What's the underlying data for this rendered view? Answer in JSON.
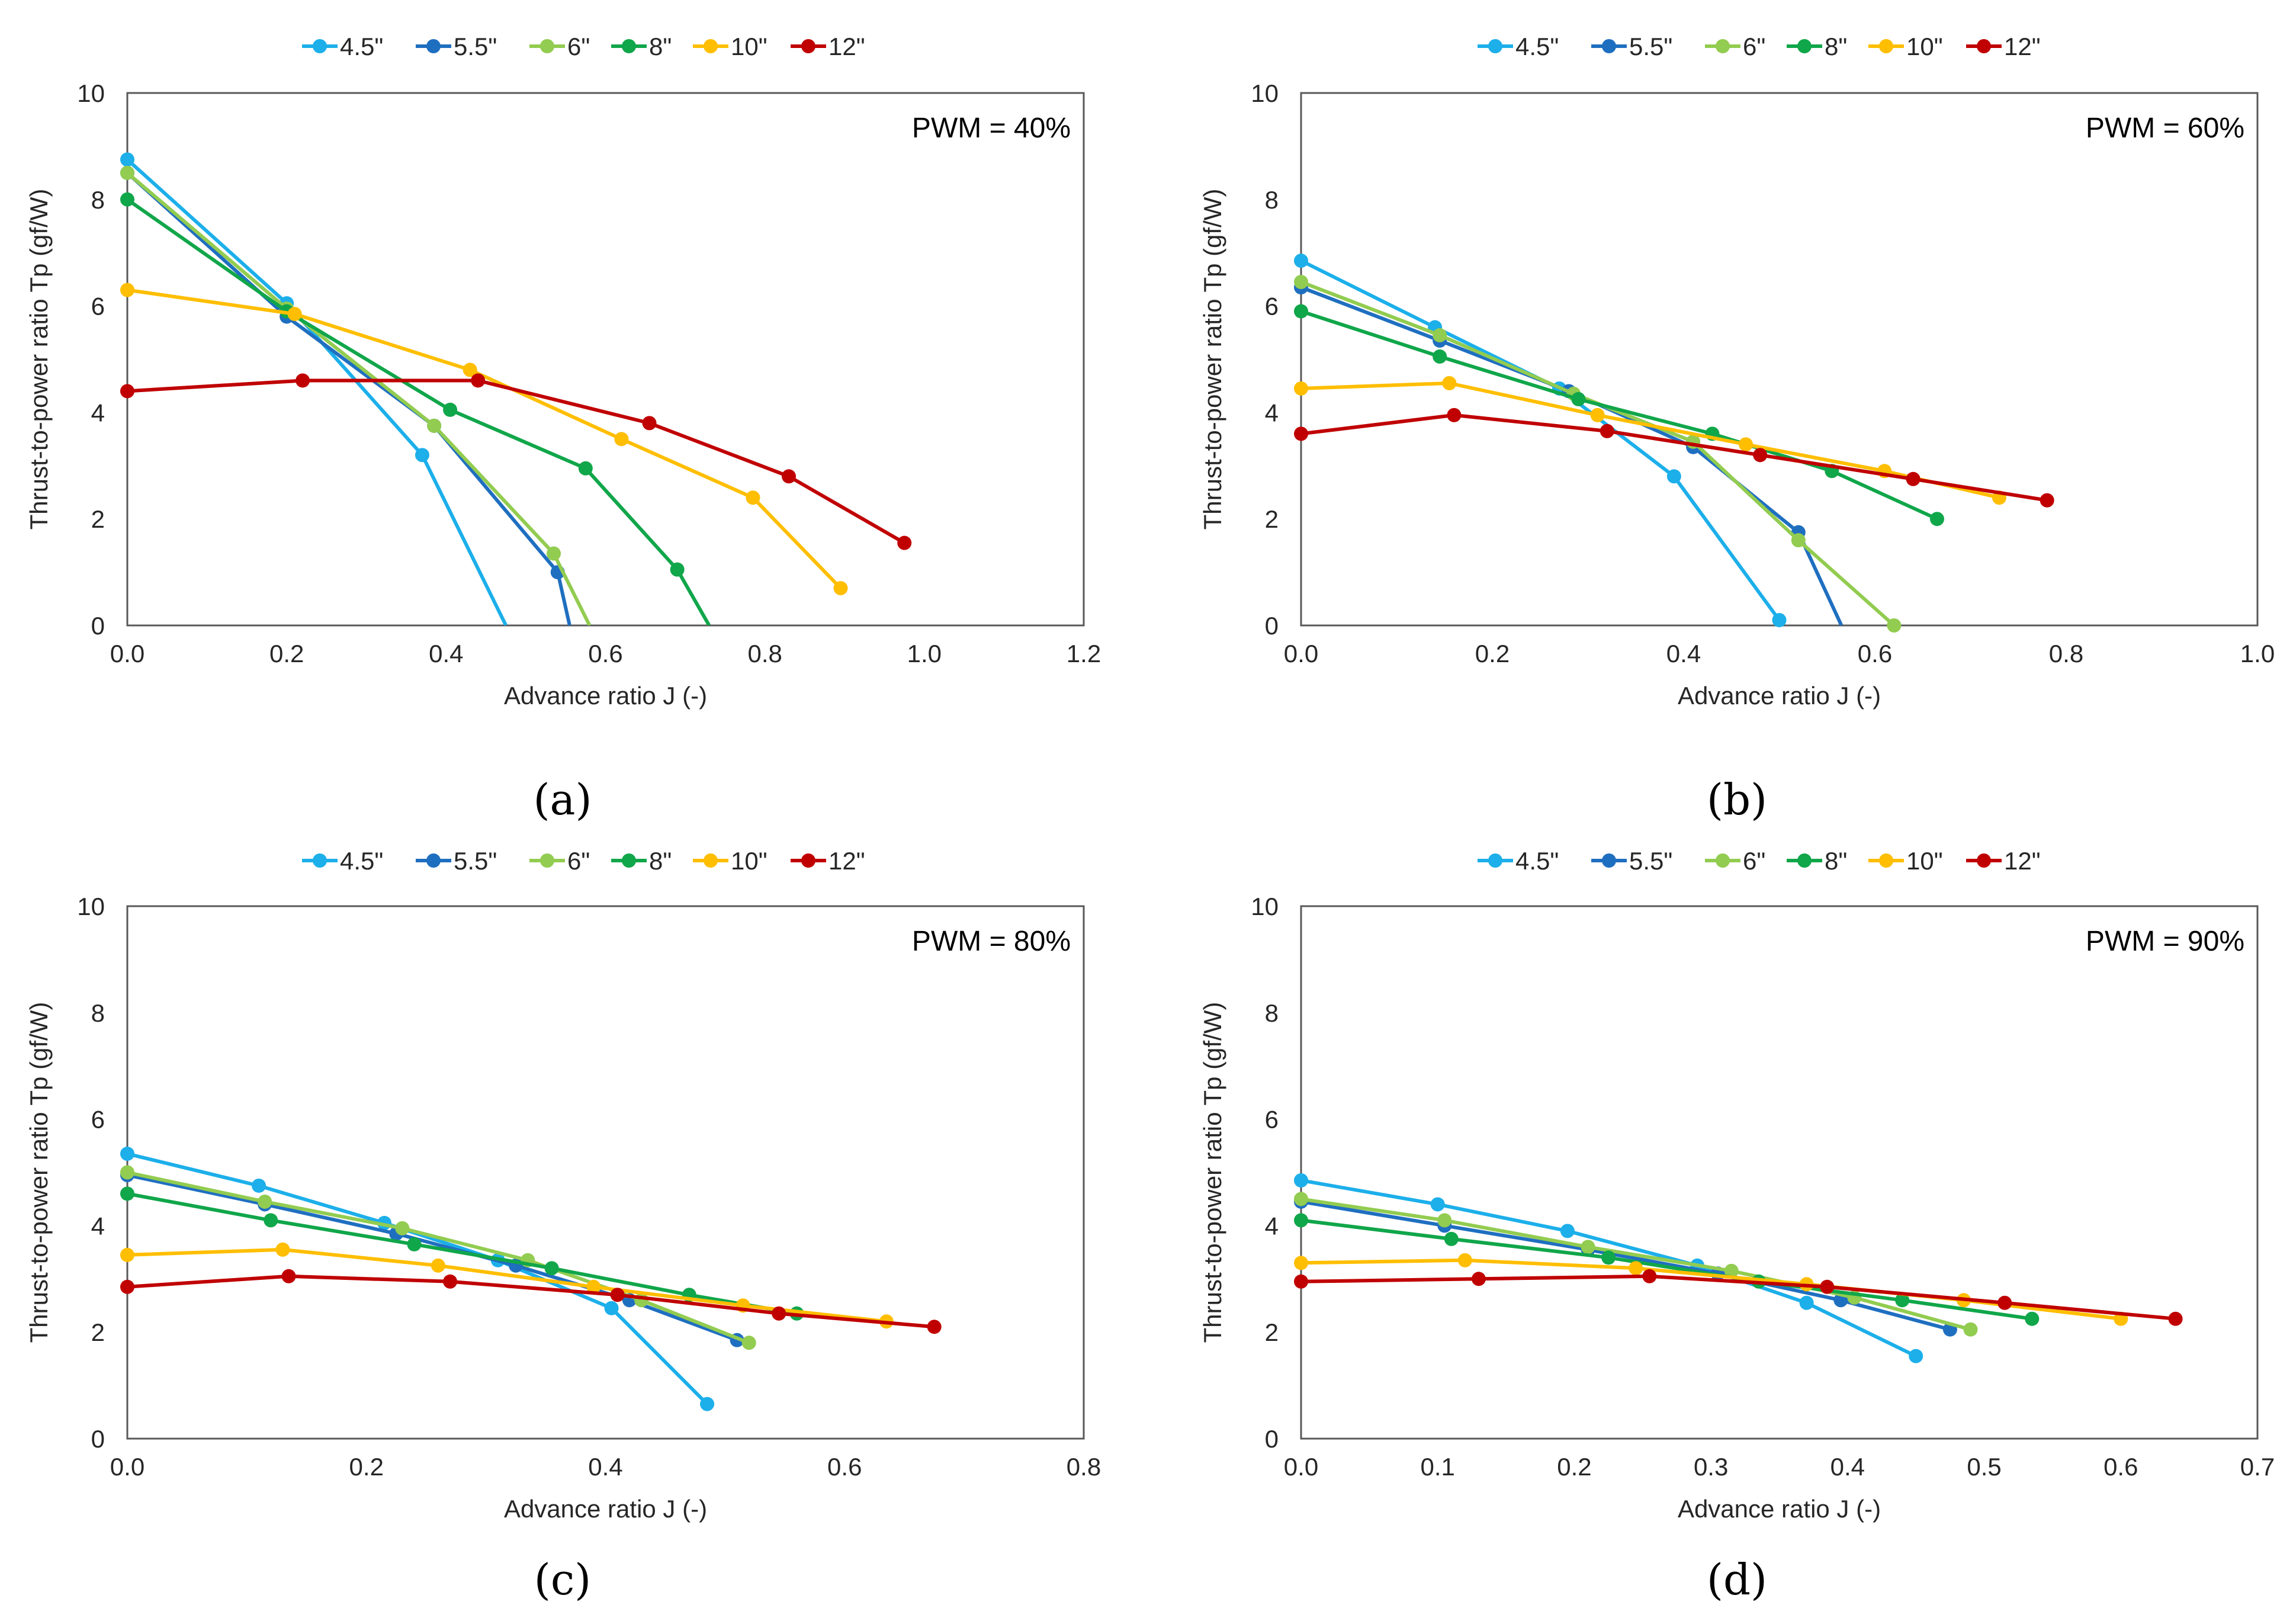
{
  "colors": {
    "s4_5": "#1CAFEA",
    "s5_5": "#1F6FC0",
    "s6": "#92CC50",
    "s8": "#10A64A",
    "s10": "#FFBE00",
    "s12": "#C00000"
  },
  "chart_data": [
    {
      "type": "line",
      "panel_label": "(a)",
      "annotation": "PWM = 40%",
      "xlabel": "Advance ratio J (-)",
      "ylabel": "Thrust-to-power ratio Tp (gf/W)",
      "xlim": [
        0,
        1.2
      ],
      "ylim": [
        0,
        10
      ],
      "xticks": [
        "0.0",
        "0.2",
        "0.4",
        "0.6",
        "0.8",
        "1.0",
        "1.2"
      ],
      "yticks": [
        "0",
        "2",
        "4",
        "6",
        "8",
        "10"
      ],
      "series": [
        {
          "name": "4.5\"",
          "color": "#1CAFEA",
          "x": [
            0.0,
            0.2,
            0.37
          ],
          "y": [
            8.75,
            6.05,
            3.2
          ],
          "end": [
            0.475,
            0
          ]
        },
        {
          "name": "5.5\"",
          "color": "#1F6FC0",
          "x": [
            0.0,
            0.2,
            0.385,
            0.54
          ],
          "y": [
            8.5,
            5.8,
            3.75,
            1.0
          ],
          "end": [
            0.555,
            0
          ]
        },
        {
          "name": "6\"",
          "color": "#92CC50",
          "x": [
            0.0,
            0.2,
            0.385,
            0.535
          ],
          "y": [
            8.5,
            5.95,
            3.75,
            1.35
          ],
          "end": [
            0.58,
            0
          ]
        },
        {
          "name": "8\"",
          "color": "#10A64A",
          "x": [
            0.0,
            0.2,
            0.405,
            0.575,
            0.69
          ],
          "y": [
            8.0,
            5.9,
            4.05,
            2.95,
            1.05
          ],
          "end": [
            0.73,
            0
          ]
        },
        {
          "name": "10\"",
          "color": "#FFBE00",
          "x": [
            0.0,
            0.21,
            0.43,
            0.62,
            0.785,
            0.895
          ],
          "y": [
            6.3,
            5.85,
            4.8,
            3.5,
            2.4,
            0.7
          ]
        },
        {
          "name": "12\"",
          "color": "#C00000",
          "x": [
            0.0,
            0.22,
            0.44,
            0.655,
            0.83,
            0.975
          ],
          "y": [
            4.4,
            4.6,
            4.6,
            3.8,
            2.8,
            1.55
          ]
        }
      ]
    },
    {
      "type": "line",
      "panel_label": "(b)",
      "annotation": "PWM = 60%",
      "xlabel": "Advance ratio J (-)",
      "ylabel": "Thrust-to-power ratio Tp (gf/W)",
      "xlim": [
        0,
        1.0
      ],
      "ylim": [
        0,
        10
      ],
      "xticks": [
        "0.0",
        "0.2",
        "0.4",
        "0.6",
        "0.8",
        "1.0"
      ],
      "yticks": [
        "0",
        "2",
        "4",
        "6",
        "8",
        "10"
      ],
      "series": [
        {
          "name": "4.5\"",
          "color": "#1CAFEA",
          "x": [
            0.0,
            0.14,
            0.27,
            0.39,
            0.5
          ],
          "y": [
            6.85,
            5.6,
            4.45,
            2.8,
            0.1
          ]
        },
        {
          "name": "5.5\"",
          "color": "#1F6FC0",
          "x": [
            0.0,
            0.145,
            0.28,
            0.41,
            0.52
          ],
          "y": [
            6.35,
            5.35,
            4.4,
            3.35,
            1.75
          ],
          "end": [
            0.565,
            0
          ]
        },
        {
          "name": "6\"",
          "color": "#92CC50",
          "x": [
            0.0,
            0.145,
            0.285,
            0.41,
            0.52,
            0.62
          ],
          "y": [
            6.45,
            5.45,
            4.35,
            3.45,
            1.6,
            0.0
          ]
        },
        {
          "name": "8\"",
          "color": "#10A64A",
          "x": [
            0.0,
            0.145,
            0.29,
            0.43,
            0.555,
            0.665
          ],
          "y": [
            5.9,
            5.05,
            4.25,
            3.6,
            2.9,
            2.0
          ]
        },
        {
          "name": "10\"",
          "color": "#FFBE00",
          "x": [
            0.0,
            0.155,
            0.31,
            0.465,
            0.61,
            0.73
          ],
          "y": [
            4.45,
            4.55,
            3.95,
            3.4,
            2.9,
            2.4
          ]
        },
        {
          "name": "12\"",
          "color": "#C00000",
          "x": [
            0.0,
            0.16,
            0.32,
            0.48,
            0.64,
            0.78
          ],
          "y": [
            3.6,
            3.95,
            3.65,
            3.2,
            2.75,
            2.35
          ]
        }
      ]
    },
    {
      "type": "line",
      "panel_label": "(c)",
      "annotation": "PWM = 80%",
      "xlabel": "Advance ratio J (-)",
      "ylabel": "Thrust-to-power ratio Tp (gf/W)",
      "xlim": [
        0,
        0.8
      ],
      "ylim": [
        0,
        10
      ],
      "xticks": [
        "0.0",
        "0.2",
        "0.4",
        "0.6",
        "0.8"
      ],
      "yticks": [
        "0",
        "2",
        "4",
        "6",
        "8",
        "10"
      ],
      "series": [
        {
          "name": "4.5\"",
          "color": "#1CAFEA",
          "x": [
            0.0,
            0.11,
            0.215,
            0.31,
            0.405,
            0.485
          ],
          "y": [
            5.35,
            4.75,
            4.05,
            3.35,
            2.45,
            0.65
          ]
        },
        {
          "name": "5.5\"",
          "color": "#1F6FC0",
          "x": [
            0.0,
            0.115,
            0.225,
            0.325,
            0.42,
            0.51
          ],
          "y": [
            4.95,
            4.4,
            3.85,
            3.25,
            2.6,
            1.85
          ]
        },
        {
          "name": "6\"",
          "color": "#92CC50",
          "x": [
            0.0,
            0.115,
            0.23,
            0.335,
            0.43,
            0.52
          ],
          "y": [
            5.0,
            4.45,
            3.95,
            3.35,
            2.6,
            1.8
          ]
        },
        {
          "name": "8\"",
          "color": "#10A64A",
          "x": [
            0.0,
            0.12,
            0.24,
            0.355,
            0.47,
            0.56
          ],
          "y": [
            4.6,
            4.1,
            3.65,
            3.2,
            2.7,
            2.35
          ]
        },
        {
          "name": "10\"",
          "color": "#FFBE00",
          "x": [
            0.0,
            0.13,
            0.26,
            0.39,
            0.515,
            0.635
          ],
          "y": [
            3.45,
            3.55,
            3.25,
            2.85,
            2.5,
            2.2
          ]
        },
        {
          "name": "12\"",
          "color": "#C00000",
          "x": [
            0.0,
            0.135,
            0.27,
            0.41,
            0.545,
            0.675
          ],
          "y": [
            2.85,
            3.05,
            2.95,
            2.7,
            2.35,
            2.1
          ]
        }
      ]
    },
    {
      "type": "line",
      "panel_label": "(d)",
      "annotation": "PWM = 90%",
      "xlabel": "Advance ratio J (-)",
      "ylabel": "Thrust-to-power ratio Tp (gf/W)",
      "xlim": [
        0,
        0.7
      ],
      "ylim": [
        0,
        10
      ],
      "xticks": [
        "0.0",
        "0.1",
        "0.2",
        "0.3",
        "0.4",
        "0.5",
        "0.6",
        "0.7"
      ],
      "yticks": [
        "0",
        "2",
        "4",
        "6",
        "8",
        "10"
      ],
      "series": [
        {
          "name": "4.5\"",
          "color": "#1CAFEA",
          "x": [
            0.0,
            0.1,
            0.195,
            0.29,
            0.37,
            0.45
          ],
          "y": [
            4.85,
            4.4,
            3.9,
            3.25,
            2.55,
            1.55
          ]
        },
        {
          "name": "5.5\"",
          "color": "#1F6FC0",
          "x": [
            0.0,
            0.105,
            0.21,
            0.305,
            0.395,
            0.475
          ],
          "y": [
            4.45,
            4.0,
            3.55,
            3.1,
            2.6,
            2.05
          ]
        },
        {
          "name": "6\"",
          "color": "#92CC50",
          "x": [
            0.0,
            0.105,
            0.21,
            0.315,
            0.405,
            0.49
          ],
          "y": [
            4.5,
            4.1,
            3.6,
            3.15,
            2.65,
            2.05
          ]
        },
        {
          "name": "8\"",
          "color": "#10A64A",
          "x": [
            0.0,
            0.11,
            0.225,
            0.335,
            0.44,
            0.535
          ],
          "y": [
            4.1,
            3.75,
            3.4,
            2.95,
            2.6,
            2.25
          ]
        },
        {
          "name": "10\"",
          "color": "#FFBE00",
          "x": [
            0.0,
            0.12,
            0.245,
            0.37,
            0.485,
            0.6
          ],
          "y": [
            3.3,
            3.35,
            3.2,
            2.9,
            2.6,
            2.25
          ]
        },
        {
          "name": "12\"",
          "color": "#C00000",
          "x": [
            0.0,
            0.13,
            0.255,
            0.385,
            0.515,
            0.64
          ],
          "y": [
            2.95,
            3.0,
            3.05,
            2.85,
            2.55,
            2.25
          ]
        }
      ]
    }
  ]
}
